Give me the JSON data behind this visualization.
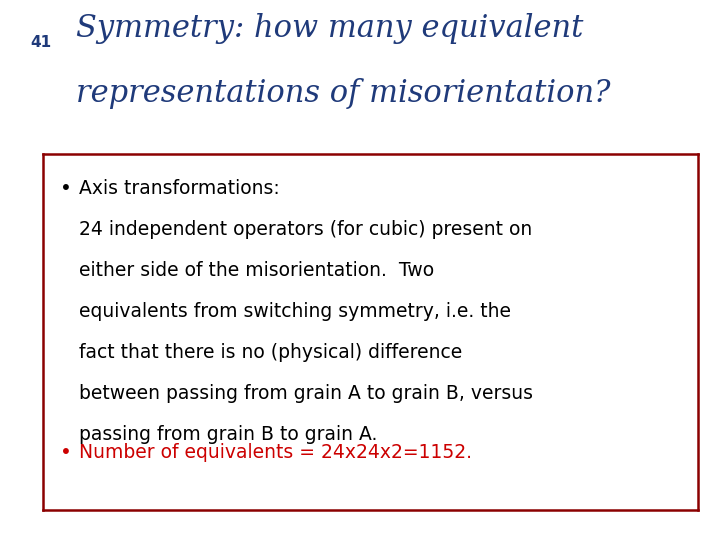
{
  "slide_number": "41",
  "title_line1": "Symmetry: how many equivalent",
  "title_line2": "representations of misorientation?",
  "title_color": "#1F3A7A",
  "slide_number_color": "#1F3A7A",
  "background_color": "#FFFFFF",
  "box_border_color": "#8B0000",
  "bullet1_text_lines": [
    "Axis transformations:",
    "24 independent operators (for cubic) present on",
    "either side of the misorientation.  Two",
    "equivalents from switching symmetry, i.e. the",
    "fact that there is no (physical) difference",
    "between passing from grain A to grain B, versus",
    "passing from grain B to grain A."
  ],
  "bullet1_color": "#000000",
  "bullet2_text": "Number of equivalents = 24x24x2=1152.",
  "bullet2_color": "#CC0000",
  "title_fontsize": 22,
  "slide_number_fontsize": 11,
  "body_fontsize": 13.5,
  "bullet2_fontsize": 13.5
}
